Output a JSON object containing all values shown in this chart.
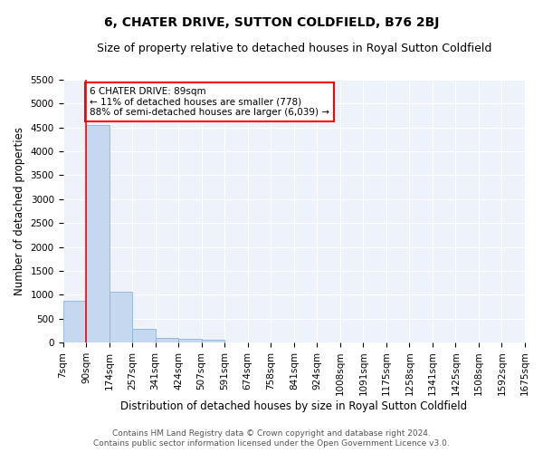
{
  "title": "6, CHATER DRIVE, SUTTON COLDFIELD, B76 2BJ",
  "subtitle": "Size of property relative to detached houses in Royal Sutton Coldfield",
  "xlabel": "Distribution of detached houses by size in Royal Sutton Coldfield",
  "ylabel": "Number of detached properties",
  "bin_labels": [
    "7sqm",
    "90sqm",
    "174sqm",
    "257sqm",
    "341sqm",
    "424sqm",
    "507sqm",
    "591sqm",
    "674sqm",
    "758sqm",
    "841sqm",
    "924sqm",
    "1008sqm",
    "1091sqm",
    "1175sqm",
    "1258sqm",
    "1341sqm",
    "1425sqm",
    "1508sqm",
    "1592sqm",
    "1675sqm"
  ],
  "bar_values": [
    880,
    4560,
    1060,
    275,
    90,
    80,
    55,
    0,
    0,
    0,
    0,
    0,
    0,
    0,
    0,
    0,
    0,
    0,
    0,
    0
  ],
  "bar_color": "#c5d8f0",
  "bar_edge_color": "#8ab4d8",
  "vline_x": 1,
  "vline_color": "red",
  "annotation_text": "6 CHATER DRIVE: 89sqm\n← 11% of detached houses are smaller (778)\n88% of semi-detached houses are larger (6,039) →",
  "annotation_box_color": "white",
  "annotation_box_edge": "red",
  "ylim": [
    0,
    5500
  ],
  "yticks": [
    0,
    500,
    1000,
    1500,
    2000,
    2500,
    3000,
    3500,
    4000,
    4500,
    5000,
    5500
  ],
  "background_color": "#eef2fa",
  "grid_color": "white",
  "footer_line1": "Contains HM Land Registry data © Crown copyright and database right 2024.",
  "footer_line2": "Contains public sector information licensed under the Open Government Licence v3.0.",
  "title_fontsize": 10,
  "subtitle_fontsize": 9,
  "xlabel_fontsize": 8.5,
  "ylabel_fontsize": 8.5,
  "tick_fontsize": 7.5,
  "annotation_fontsize": 7.5,
  "footer_fontsize": 6.5
}
